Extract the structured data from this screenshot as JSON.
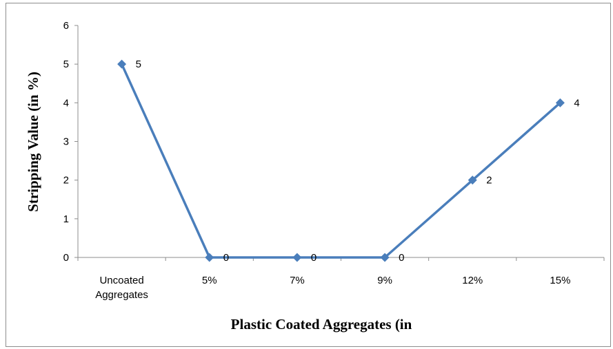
{
  "chart_data": {
    "type": "line",
    "categories": [
      [
        "Uncoated",
        "Aggregates"
      ],
      [
        "5%"
      ],
      [
        "7%"
      ],
      [
        "9%"
      ],
      [
        "12%"
      ],
      [
        "15%"
      ]
    ],
    "series": [
      {
        "values": [
          5,
          0,
          0,
          0,
          2,
          4
        ],
        "color": "#4a7ebb"
      }
    ],
    "data_labels": [
      "5",
      "0",
      "0",
      "0",
      "2",
      "4"
    ],
    "y_ticks": [
      "0",
      "1",
      "2",
      "3",
      "4",
      "5",
      "6"
    ],
    "ylim": [
      0,
      6
    ],
    "xlabel": "Plastic Coated Aggregates (in",
    "ylabel": "Stripping Value (in %)",
    "marker": "diamond",
    "grid": false,
    "legend": "none",
    "colors": {
      "axis": "#8c8c8c",
      "series": "#4a7ebb",
      "frame": "#8c8c8c"
    }
  }
}
